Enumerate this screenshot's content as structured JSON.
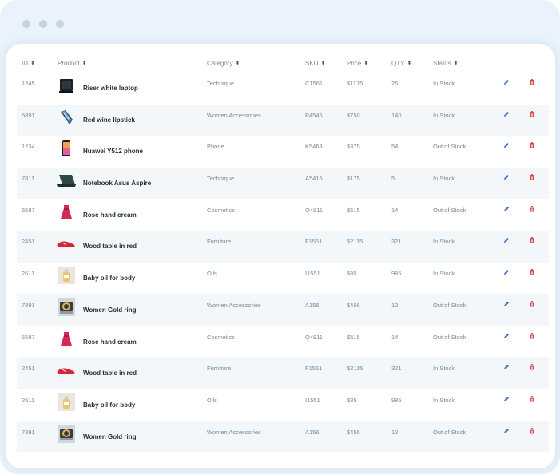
{
  "window": {
    "title": ""
  },
  "columns": [
    "ID",
    "Product",
    "Category",
    "SKU",
    "Price",
    "QTY",
    "Status"
  ],
  "colors": {
    "window_bg": "#eaf3fb",
    "edit_icon": "#3d6fd6",
    "delete_icon": "#e04a55",
    "row_alt": "#f3f7fa"
  },
  "rows": [
    {
      "id": "1245",
      "product": "Riser white laptop",
      "category": "Technique",
      "sku": "C1561",
      "price": "$1175",
      "qty": "25",
      "status": "In Stock",
      "thumb": "laptop-black"
    },
    {
      "id": "5891",
      "product": "Red wine lipstick",
      "category": "Women Accessories",
      "sku": "P4545",
      "price": "$750",
      "qty": "140",
      "status": "In Stock",
      "thumb": "tie"
    },
    {
      "id": "1234",
      "product": "Huawei Y512 phone",
      "category": "Phone",
      "sku": "K5463",
      "price": "$375",
      "qty": "54",
      "status": "Out of Stock",
      "thumb": "phone"
    },
    {
      "id": "7811",
      "product": "Notebook Asus Aspire",
      "category": "Technique",
      "sku": "A5415",
      "price": "$175",
      "qty": "5",
      "status": "In Stock",
      "thumb": "laptop-green"
    },
    {
      "id": "6587",
      "product": "Rose hand cream",
      "category": "Cosmetics",
      "sku": "Q4811",
      "price": "$515",
      "qty": "14",
      "status": "Out of Stock",
      "thumb": "dress"
    },
    {
      "id": "2451",
      "product": "Wood table in red",
      "category": "Furniture",
      "sku": "F1561",
      "price": "$2115",
      "qty": "321",
      "status": "In Stock",
      "thumb": "shoe"
    },
    {
      "id": "2611",
      "product": "Baby oil for body",
      "category": "Oils",
      "sku": "I1551",
      "price": "$85",
      "qty": "985",
      "status": "In Stock",
      "thumb": "bottle"
    },
    {
      "id": "7891",
      "product": "Women Gold ring",
      "category": "Women Accessories",
      "sku": "A156",
      "price": "$456",
      "qty": "12",
      "status": "Out of Stock",
      "thumb": "ring"
    },
    {
      "id": "6587",
      "product": "Rose hand cream",
      "category": "Cosmetics",
      "sku": "Q4811",
      "price": "$515",
      "qty": "14",
      "status": "Out of Stock",
      "thumb": "dress"
    },
    {
      "id": "2451",
      "product": "Wood table in red",
      "category": "Furniture",
      "sku": "F1561",
      "price": "$2115",
      "qty": "321",
      "status": "In Stock",
      "thumb": "shoe"
    },
    {
      "id": "2611",
      "product": "Baby oil for body",
      "category": "Oils",
      "sku": "I1551",
      "price": "$85",
      "qty": "985",
      "status": "In Stock",
      "thumb": "bottle"
    },
    {
      "id": "7891",
      "product": "Women Gold ring",
      "category": "Women Accessories",
      "sku": "A156",
      "price": "$456",
      "qty": "12",
      "status": "Out of Stock",
      "thumb": "ring"
    }
  ]
}
